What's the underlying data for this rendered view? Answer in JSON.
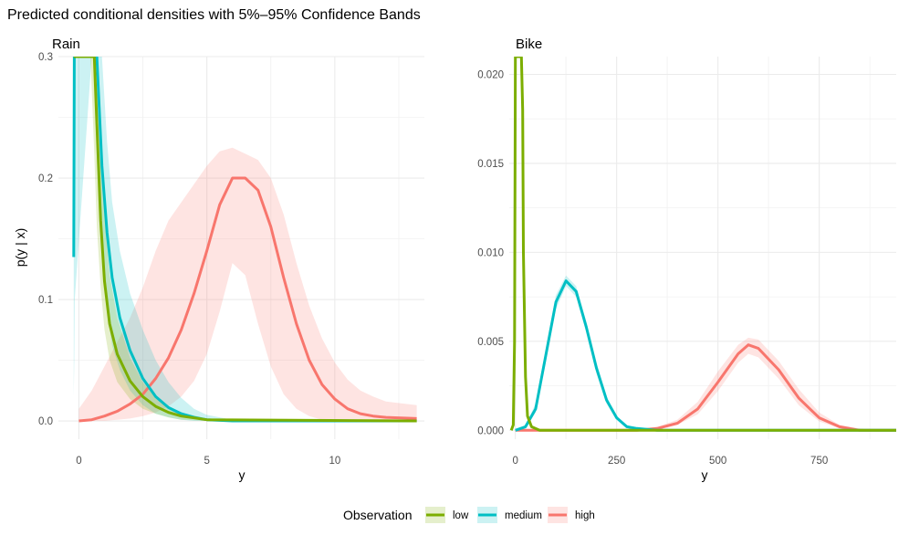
{
  "chart_data": {
    "title": "Predicted conditional densities with 5%–95% Confidence Bands",
    "type": "line",
    "series_colors": {
      "low": "#7CAE00",
      "medium": "#00BFC4",
      "high": "#F8766D"
    },
    "legend": {
      "title": "Observation",
      "position": "bottom",
      "entries": [
        {
          "key": "low",
          "label": "low"
        },
        {
          "key": "medium",
          "label": "medium"
        },
        {
          "key": "high",
          "label": "high"
        }
      ]
    },
    "panels": [
      {
        "strip": "Rain",
        "xlabel": "y",
        "ylabel": "p(y | x)",
        "xlim": [
          -0.8,
          13.5
        ],
        "ylim": [
          -0.015,
          0.3
        ],
        "xticks": [
          0,
          5,
          10
        ],
        "xtick_labels": [
          "0",
          "5",
          "10"
        ],
        "yticks": [
          0.0,
          0.1,
          0.2,
          0.3
        ],
        "ytick_labels": [
          "0.0",
          "0.1",
          "0.2",
          "0.3"
        ],
        "series": [
          {
            "name": "high",
            "x": [
              0,
              0.5,
              1,
              1.5,
              2,
              2.5,
              3,
              3.5,
              4,
              4.5,
              5,
              5.5,
              6,
              6.5,
              7,
              7.5,
              8,
              8.5,
              9,
              9.5,
              10,
              10.5,
              11,
              11.5,
              12,
              13.2
            ],
            "y": [
              0,
              0.001,
              0.004,
              0.008,
              0.014,
              0.022,
              0.035,
              0.052,
              0.075,
              0.105,
              0.14,
              0.178,
              0.2,
              0.2,
              0.19,
              0.16,
              0.118,
              0.08,
              0.05,
              0.03,
              0.018,
              0.01,
              0.006,
              0.004,
              0.003,
              0.002
            ],
            "lower": [
              0,
              0,
              0,
              0.001,
              0.002,
              0.004,
              0.007,
              0.012,
              0.02,
              0.033,
              0.055,
              0.09,
              0.13,
              0.12,
              0.08,
              0.045,
              0.022,
              0.01,
              0.004,
              0.001,
              0,
              0,
              0,
              0,
              0,
              0
            ],
            "upper": [
              0.01,
              0.025,
              0.045,
              0.065,
              0.085,
              0.11,
              0.14,
              0.165,
              0.18,
              0.195,
              0.21,
              0.222,
              0.225,
              0.22,
              0.215,
              0.2,
              0.17,
              0.13,
              0.095,
              0.068,
              0.048,
              0.034,
              0.025,
              0.02,
              0.016,
              0.013
            ]
          },
          {
            "name": "medium",
            "x": [
              -0.2,
              -0.18,
              -0.16,
              0.5,
              0.7,
              0.9,
              1.1,
              1.3,
              1.6,
              2,
              2.5,
              3,
              3.5,
              4,
              4.5,
              5,
              6,
              13.2
            ],
            "y": [
              0.135,
              0.3,
              0.3,
              0.3,
              0.3,
              0.21,
              0.155,
              0.118,
              0.085,
              0.058,
              0.035,
              0.02,
              0.011,
              0.006,
              0.003,
              0.001,
              0,
              0
            ],
            "lower": [
              0.02,
              0.05,
              0.1,
              0.3,
              0.3,
              0.14,
              0.09,
              0.062,
              0.042,
              0.025,
              0.013,
              0.006,
              0.003,
              0.001,
              0,
              0,
              0,
              0
            ],
            "upper": [
              0.3,
              0.3,
              0.3,
              0.3,
              0.3,
              0.3,
              0.23,
              0.18,
              0.14,
              0.105,
              0.075,
              0.05,
              0.032,
              0.019,
              0.01,
              0.005,
              0.001,
              0
            ]
          },
          {
            "name": "low",
            "x": [
              -0.2,
              0.45,
              0.6,
              0.7,
              0.85,
              1,
              1.2,
              1.5,
              2,
              2.5,
              3,
              3.5,
              4,
              5,
              13.2
            ],
            "y": [
              0.3,
              0.3,
              0.3,
              0.245,
              0.165,
              0.115,
              0.08,
              0.055,
              0.033,
              0.02,
              0.012,
              0.007,
              0.004,
              0.001,
              0
            ],
            "lower": [
              0.3,
              0.3,
              0.22,
              0.16,
              0.11,
              0.075,
              0.05,
              0.032,
              0.018,
              0.01,
              0.006,
              0.003,
              0.001,
              0,
              0
            ],
            "upper": [
              0.3,
              0.3,
              0.3,
              0.3,
              0.24,
              0.17,
              0.12,
              0.085,
              0.052,
              0.032,
              0.02,
              0.012,
              0.007,
              0.002,
              0
            ]
          }
        ]
      },
      {
        "strip": "Bike",
        "xlabel": "y",
        "ylabel": "",
        "xlim": [
          -15,
          940
        ],
        "ylim": [
          -0.0005,
          0.021
        ],
        "xticks": [
          0,
          250,
          500,
          750
        ],
        "xtick_labels": [
          "0",
          "250",
          "500",
          "750"
        ],
        "yticks": [
          0.0,
          0.005,
          0.01,
          0.015,
          0.02
        ],
        "ytick_labels": [
          "0.000",
          "0.005",
          "0.010",
          "0.015",
          "0.020"
        ],
        "series": [
          {
            "name": "high",
            "x": [
              0,
              300,
              350,
              400,
              450,
              500,
              550,
              575,
              600,
              650,
              700,
              750,
              800,
              850,
              940
            ],
            "y": [
              0,
              0,
              0.0001,
              0.0004,
              0.0012,
              0.0027,
              0.0043,
              0.0048,
              0.0046,
              0.0034,
              0.0018,
              0.0007,
              0.0002,
              0,
              0
            ],
            "lower": [
              0,
              0,
              0.0001,
              0.0003,
              0.0009,
              0.0022,
              0.0038,
              0.0043,
              0.0041,
              0.0029,
              0.0014,
              0.0005,
              0.0001,
              0,
              0
            ],
            "upper": [
              0,
              0,
              0.0002,
              0.0006,
              0.0016,
              0.0033,
              0.0048,
              0.0052,
              0.0051,
              0.0039,
              0.0023,
              0.001,
              0.0003,
              0.0001,
              0
            ]
          },
          {
            "name": "medium",
            "x": [
              0,
              25,
              50,
              75,
              100,
              125,
              150,
              175,
              200,
              225,
              250,
              275,
              300,
              350,
              940
            ],
            "y": [
              0,
              0.0002,
              0.0012,
              0.0042,
              0.0072,
              0.0084,
              0.0078,
              0.0058,
              0.0035,
              0.0017,
              0.0007,
              0.0002,
              0.0001,
              0,
              0
            ],
            "lower": [
              0,
              0.0001,
              0.001,
              0.0038,
              0.0068,
              0.0081,
              0.0075,
              0.0055,
              0.0032,
              0.0015,
              0.0006,
              0.0002,
              0,
              0,
              0
            ],
            "upper": [
              0,
              0.0003,
              0.0015,
              0.0046,
              0.0076,
              0.0087,
              0.0081,
              0.0061,
              0.0038,
              0.0019,
              0.0008,
              0.0003,
              0.0001,
              0,
              0
            ]
          },
          {
            "name": "low",
            "x": [
              -10,
              -5,
              -2,
              0,
              2,
              5,
              8,
              10,
              12,
              15,
              18,
              20,
              25,
              30,
              40,
              60,
              940
            ],
            "y": [
              0,
              0.0003,
              0.005,
              0.021,
              0.021,
              0.021,
              0.021,
              0.021,
              0.021,
              0.021,
              0.018,
              0.01,
              0.003,
              0.0008,
              0.0002,
              0,
              0
            ],
            "lower": [
              0,
              0.0002,
              0.004,
              0.021,
              0.021,
              0.021,
              0.021,
              0.021,
              0.021,
              0.02,
              0.016,
              0.009,
              0.0025,
              0.0006,
              0.0001,
              0,
              0
            ],
            "upper": [
              0,
              0.0004,
              0.006,
              0.021,
              0.021,
              0.021,
              0.021,
              0.021,
              0.021,
              0.021,
              0.02,
              0.012,
              0.0035,
              0.001,
              0.0003,
              0,
              0
            ]
          }
        ]
      }
    ]
  }
}
